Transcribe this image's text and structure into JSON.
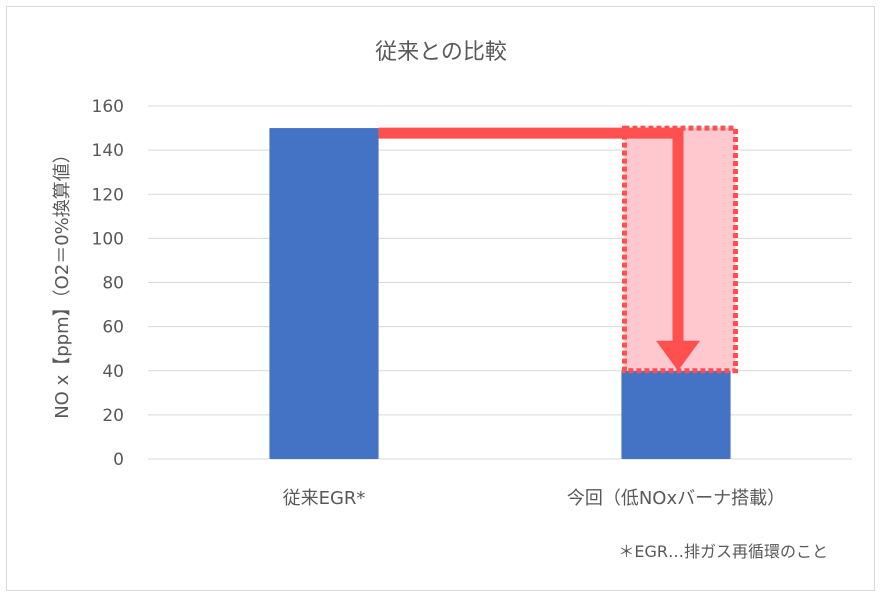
{
  "chart_data": {
    "type": "bar",
    "title": "従来との比較",
    "ylabel": "NO x【ppm】（O2＝0%換算値）",
    "xlabel": "",
    "ylim": [
      0,
      160
    ],
    "yticks": [
      0,
      20,
      40,
      60,
      80,
      100,
      120,
      140,
      160
    ],
    "grid": true,
    "legend": "none",
    "categories": [
      "従来EGR*",
      "今回（低NOxバーナ搭載）"
    ],
    "values": [
      150,
      40
    ],
    "reduction_from": 150,
    "reduction_to": 40,
    "footnote": "＊EGR…排ガス再循環のこと",
    "colors": {
      "bar": "#4472c4",
      "arrow": "#ff5050",
      "highlight_fill": "#ffc7ce",
      "grid": "#d9d9d9",
      "text": "#595959"
    }
  }
}
